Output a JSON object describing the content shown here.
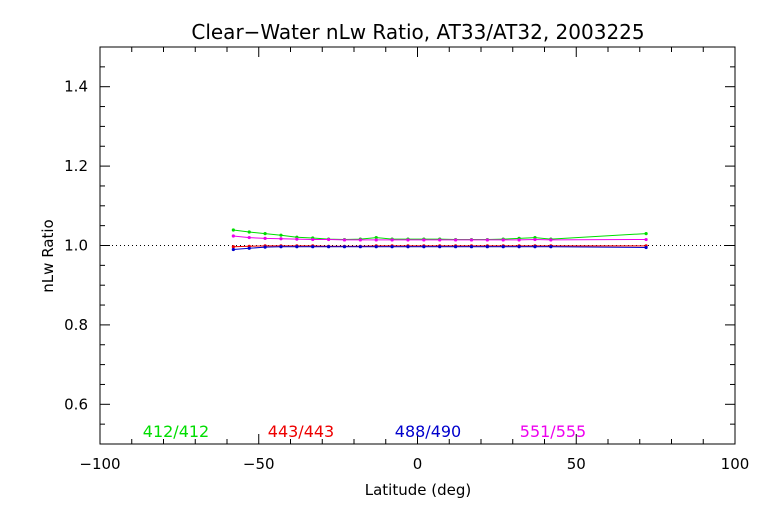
{
  "chart_data": {
    "type": "line",
    "title": "Clear−Water nLw Ratio, AT33/AT32, 2003225",
    "xlabel": "Latitude (deg)",
    "ylabel": "nLw Ratio",
    "xlim": [
      -100,
      100
    ],
    "ylim": [
      0.5,
      1.5
    ],
    "xticks": [
      -100,
      -50,
      0,
      50,
      100
    ],
    "xtick_labels": [
      "−100",
      "−50",
      "0",
      "50",
      "100"
    ],
    "yticks": [
      0.6,
      0.8,
      1.0,
      1.2,
      1.4
    ],
    "ytick_labels": [
      "0.6",
      "0.8",
      "1.0",
      "1.2",
      "1.4"
    ],
    "reference_line": 1.0,
    "grid": false,
    "legend_placement": "bottom, inside plot",
    "x": [
      -58,
      -53,
      -48,
      -43,
      -38,
      -33,
      -28,
      -23,
      -18,
      -13,
      -8,
      -3,
      2,
      7,
      12,
      17,
      22,
      27,
      32,
      37,
      42,
      72
    ],
    "series": [
      {
        "name": "412/412",
        "color": "#00dd00",
        "values": [
          1.039,
          1.034,
          1.03,
          1.026,
          1.021,
          1.019,
          1.016,
          1.015,
          1.016,
          1.02,
          1.016,
          1.016,
          1.016,
          1.016,
          1.015,
          1.015,
          1.015,
          1.016,
          1.018,
          1.02,
          1.016,
          1.03
        ]
      },
      {
        "name": "443/443",
        "color": "#ee0000",
        "values": [
          0.997,
          0.998,
          0.999,
          0.999,
          0.999,
          0.999,
          0.998,
          0.998,
          0.998,
          0.999,
          0.999,
          0.999,
          0.999,
          0.999,
          0.999,
          0.999,
          0.999,
          0.999,
          0.999,
          0.999,
          0.999,
          0.999
        ]
      },
      {
        "name": "488/490",
        "color": "#0000cc",
        "values": [
          0.99,
          0.993,
          0.996,
          0.997,
          0.997,
          0.997,
          0.997,
          0.997,
          0.997,
          0.997,
          0.997,
          0.997,
          0.997,
          0.997,
          0.997,
          0.997,
          0.997,
          0.997,
          0.997,
          0.997,
          0.997,
          0.995
        ]
      },
      {
        "name": "551/555",
        "color": "#ee00ee",
        "values": [
          1.024,
          1.02,
          1.018,
          1.017,
          1.016,
          1.015,
          1.015,
          1.014,
          1.014,
          1.014,
          1.014,
          1.014,
          1.014,
          1.014,
          1.014,
          1.014,
          1.014,
          1.014,
          1.014,
          1.015,
          1.014,
          1.015
        ]
      }
    ]
  }
}
